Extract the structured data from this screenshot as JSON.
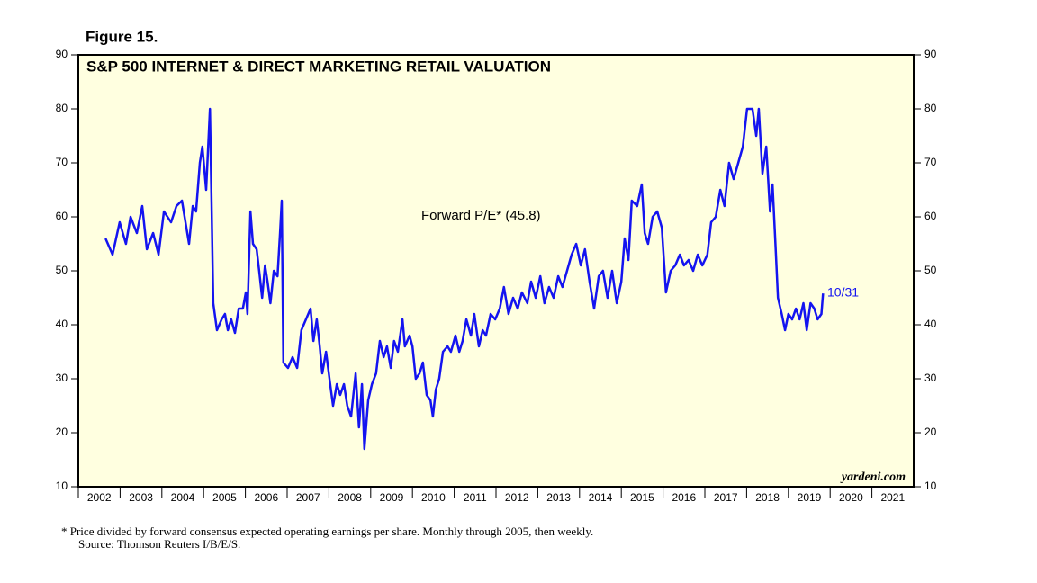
{
  "chart_data": {
    "type": "line",
    "figure_label": "Figure 15.",
    "title": "S&P 500 INTERNET & DIRECT MARKETING RETAIL VALUATION",
    "end_label": "10/31",
    "source_mark": "yardeni.com",
    "footnotes": [
      "*  Price divided by forward consensus expected operating earnings per share. Monthly through 2005, then weekly.",
      "Source: Thomson Reuters I/B/E/S."
    ],
    "xlim": [
      2002,
      2022
    ],
    "xticks": [
      2002,
      2003,
      2004,
      2005,
      2006,
      2007,
      2008,
      2009,
      2010,
      2011,
      2012,
      2013,
      2014,
      2015,
      2016,
      2017,
      2018,
      2019,
      2020,
      2021
    ],
    "ylim": [
      10,
      90
    ],
    "yticks": [
      10,
      20,
      30,
      40,
      50,
      60,
      70,
      80,
      90
    ],
    "x": [
      2002.65,
      2002.82,
      2002.99,
      2003.14,
      2003.25,
      2003.4,
      2003.53,
      2003.64,
      2003.79,
      2003.92,
      2004.05,
      2004.22,
      2004.35,
      2004.48,
      2004.65,
      2004.74,
      2004.82,
      2004.91,
      2004.97,
      2005.06,
      2005.15,
      2005.23,
      2005.32,
      2005.43,
      2005.51,
      2005.58,
      2005.66,
      2005.75,
      2005.84,
      2005.94,
      2006.01,
      2006.05,
      2006.12,
      2006.18,
      2006.27,
      2006.33,
      2006.4,
      2006.47,
      2006.53,
      2006.6,
      2006.68,
      2006.77,
      2006.83,
      2006.87,
      2006.91,
      2007.02,
      2007.13,
      2007.24,
      2007.34,
      2007.45,
      2007.56,
      2007.63,
      2007.71,
      2007.78,
      2007.84,
      2007.93,
      2008.03,
      2008.1,
      2008.19,
      2008.27,
      2008.36,
      2008.44,
      2008.53,
      2008.64,
      2008.72,
      2008.79,
      2008.85,
      2008.94,
      2009.03,
      2009.13,
      2009.22,
      2009.31,
      2009.39,
      2009.48,
      2009.56,
      2009.65,
      2009.76,
      2009.82,
      2009.93,
      2010.0,
      2010.08,
      2010.17,
      2010.25,
      2010.34,
      2010.43,
      2010.49,
      2010.56,
      2010.64,
      2010.73,
      2010.84,
      2010.92,
      2011.03,
      2011.12,
      2011.2,
      2011.29,
      2011.4,
      2011.48,
      2011.59,
      2011.68,
      2011.76,
      2011.87,
      2011.98,
      2012.09,
      2012.19,
      2012.3,
      2012.41,
      2012.52,
      2012.62,
      2012.75,
      2012.84,
      2012.95,
      2013.06,
      2013.16,
      2013.27,
      2013.38,
      2013.49,
      2013.59,
      2013.7,
      2013.81,
      2013.92,
      2014.03,
      2014.13,
      2014.24,
      2014.35,
      2014.46,
      2014.56,
      2014.67,
      2014.78,
      2014.89,
      2015.0,
      2015.08,
      2015.17,
      2015.25,
      2015.38,
      2015.49,
      2015.56,
      2015.64,
      2015.75,
      2015.86,
      2015.97,
      2016.07,
      2016.18,
      2016.29,
      2016.4,
      2016.5,
      2016.61,
      2016.72,
      2016.83,
      2016.94,
      2017.06,
      2017.15,
      2017.26,
      2017.37,
      2017.47,
      2017.58,
      2017.69,
      2017.8,
      2017.91,
      2018.01,
      2018.14,
      2018.23,
      2018.29,
      2018.38,
      2018.47,
      2018.56,
      2018.62,
      2018.69,
      2018.75,
      2018.84,
      2018.92,
      2019.0,
      2019.09,
      2019.18,
      2019.27,
      2019.36,
      2019.44,
      2019.53,
      2019.62,
      2019.7,
      2019.79,
      2019.83
    ],
    "series": [
      {
        "name": "Forward P/E* (45.8)",
        "color": "#1414f0",
        "values": [
          56,
          53,
          59,
          55,
          60,
          57,
          62,
          54,
          57,
          53,
          61,
          59,
          62,
          63,
          55,
          62,
          61,
          70,
          73,
          65,
          80,
          44,
          39,
          41,
          42,
          39,
          41,
          38.5,
          43,
          43,
          46,
          42,
          61,
          55,
          54,
          50,
          45,
          51,
          48,
          44,
          50,
          49,
          57,
          63,
          33,
          32,
          34,
          32,
          39,
          41,
          43,
          37,
          41,
          36,
          31,
          35,
          29,
          25,
          29,
          27,
          29,
          25,
          23,
          31,
          21,
          29,
          17,
          26,
          29,
          31,
          37,
          34,
          36,
          32,
          37,
          35,
          41,
          36,
          38,
          36,
          30,
          31,
          33,
          27,
          26,
          23,
          28,
          30,
          35,
          36,
          35,
          38,
          35,
          37,
          41,
          38,
          42,
          36,
          39,
          38,
          42,
          41,
          43,
          47,
          42,
          45,
          43,
          46,
          44,
          48,
          45,
          49,
          44,
          47,
          45,
          49,
          47,
          50,
          53,
          55,
          51,
          54,
          48,
          43,
          49,
          50,
          45,
          50,
          44,
          48,
          56,
          52,
          63,
          62,
          66,
          57,
          55,
          60,
          61,
          58,
          46,
          50,
          51,
          53,
          51,
          52,
          50,
          53,
          51,
          53,
          59,
          60,
          65,
          62,
          70,
          67,
          70,
          73,
          80,
          80,
          75,
          80,
          68,
          73,
          61,
          66,
          55,
          45,
          42,
          39,
          42,
          41,
          43,
          41,
          44,
          39,
          44,
          43,
          41,
          42,
          45.8
        ]
      }
    ]
  }
}
